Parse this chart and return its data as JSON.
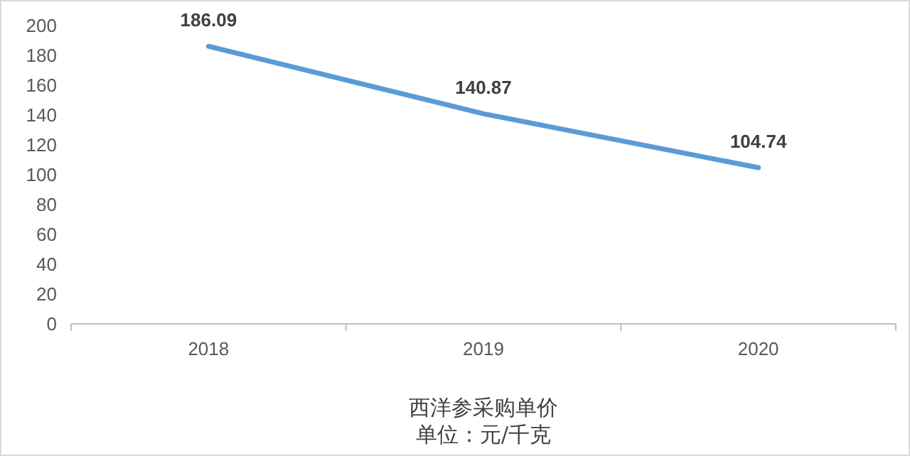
{
  "chart_data": {
    "type": "line",
    "xlabel": "西洋参采购单价",
    "annotations": [
      "单位：元/千克"
    ],
    "categories": [
      "2018",
      "2019",
      "2020"
    ],
    "series": [
      {
        "color": "#5b9bd5",
        "values": [
          186.09,
          140.87,
          104.74
        ]
      }
    ],
    "ylim": [
      0,
      200
    ],
    "yticks": [
      0,
      20,
      40,
      60,
      80,
      100,
      120,
      140,
      160,
      180,
      200
    ],
    "grid": false,
    "marker": "none",
    "line_style": "solid",
    "data_labels": true
  }
}
